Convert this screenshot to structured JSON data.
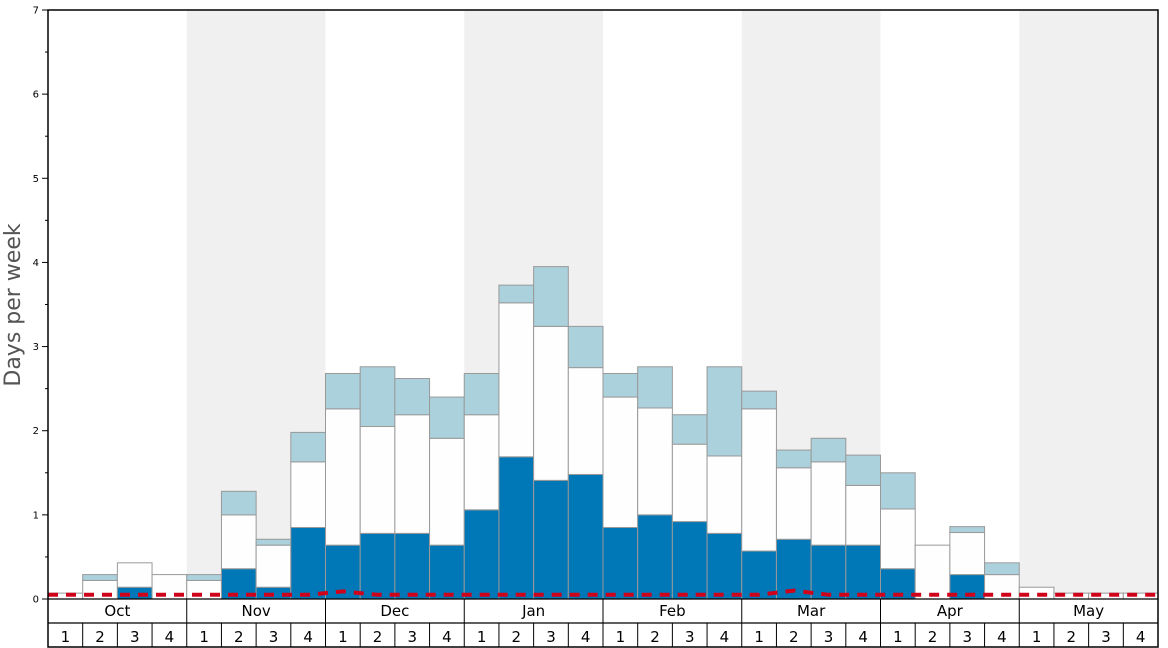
{
  "chart_data": {
    "type": "bar",
    "ylabel": "Days per week",
    "ylim": [
      0,
      7
    ],
    "yticks": [
      "0",
      "1",
      "2",
      "3",
      "4",
      "5",
      "6",
      "7"
    ],
    "months": [
      "Oct",
      "Nov",
      "Dec",
      "Jan",
      "Feb",
      "Mar",
      "Apr",
      "May"
    ],
    "week_labels": [
      "1",
      "2",
      "3",
      "4"
    ],
    "shaded_months": [
      "Nov",
      "Jan",
      "Mar",
      "May"
    ],
    "stacks": [
      {
        "name": "dark-blue",
        "color": "#0077b6",
        "values": [
          0,
          0,
          0.14,
          0,
          0,
          0.36,
          0.14,
          0.85,
          0.64,
          0.78,
          0.78,
          0.64,
          1.06,
          1.69,
          1.41,
          1.48,
          0.85,
          1.0,
          0.92,
          0.78,
          0.57,
          0.71,
          0.64,
          0.64,
          0.36,
          0,
          0.29,
          0,
          0,
          0,
          0,
          0
        ]
      },
      {
        "name": "white",
        "color": "#fefefe",
        "values": [
          0.07,
          0.22,
          0.29,
          0.29,
          0.22,
          0.64,
          0.5,
          0.78,
          1.62,
          1.27,
          1.41,
          1.27,
          1.13,
          1.83,
          1.83,
          1.27,
          1.55,
          1.27,
          0.92,
          0.92,
          1.69,
          0.85,
          0.99,
          0.71,
          0.71,
          0.64,
          0.5,
          0.29,
          0.14,
          0.07,
          0.07,
          0.07
        ]
      },
      {
        "name": "light-blue",
        "color": "#abd1dd",
        "values": [
          0,
          0.07,
          0,
          0,
          0.07,
          0.28,
          0.07,
          0.35,
          0.42,
          0.71,
          0.43,
          0.49,
          0.49,
          0.21,
          0.71,
          0.49,
          0.28,
          0.49,
          0.35,
          1.06,
          0.21,
          0.21,
          0.28,
          0.36,
          0.43,
          0,
          0.07,
          0.14,
          0,
          0,
          0,
          0
        ]
      }
    ],
    "line": {
      "name": "red-dashed",
      "color": "#d0021b",
      "values": [
        0.05,
        0.05,
        0.05,
        0.05,
        0.05,
        0.05,
        0.05,
        0.05,
        0.09,
        0.05,
        0.05,
        0.05,
        0.05,
        0.05,
        0.05,
        0.05,
        0.05,
        0.05,
        0.05,
        0.05,
        0.05,
        0.1,
        0.05,
        0.05,
        0.05,
        0.05,
        0.05,
        0.05,
        0.05,
        0.05,
        0.05,
        0.05
      ]
    },
    "grid": false
  }
}
